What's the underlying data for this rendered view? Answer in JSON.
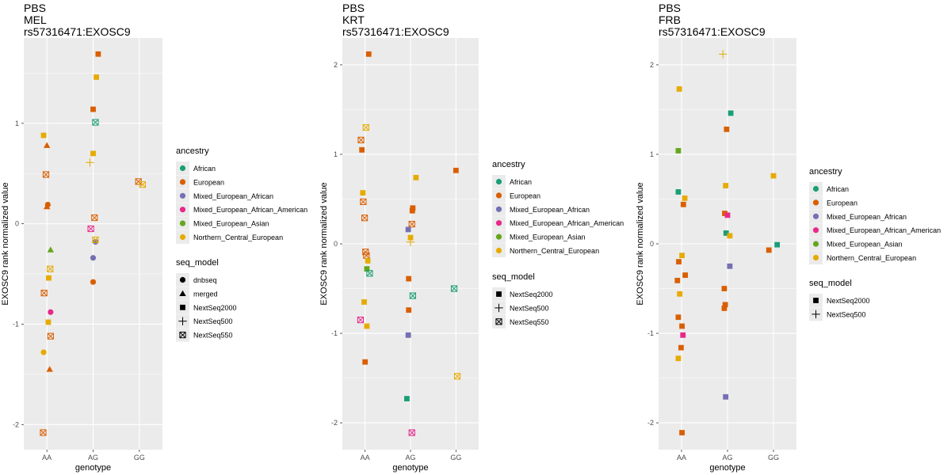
{
  "chart_data": [
    {
      "type": "scatter",
      "title": [
        "PBS",
        "MEL",
        "rs57316471:EXOSC9"
      ],
      "xlabel": "genotype",
      "ylabel": "EXOSC9 rank normalized value",
      "categories": [
        "AA",
        "AG",
        "GG"
      ],
      "ylim": [
        -2.25,
        1.85
      ],
      "yticks": [
        -2,
        -1,
        0,
        1
      ],
      "grid": true,
      "legend_position": "right",
      "ancestry_levels": [
        "African",
        "European",
        "Mixed_European_African",
        "Mixed_European_African_American",
        "Mixed_European_Asian",
        "Northern_Central_European"
      ],
      "seq_levels": [
        "dnbseq",
        "merged",
        "NextSeq2000",
        "NextSeq500",
        "NextSeq550"
      ],
      "points": [
        {
          "g": "AA",
          "j": -0.07,
          "y": 0.88,
          "a": "Northern_Central_European",
          "s": "NextSeq2000"
        },
        {
          "g": "AA",
          "j": 0.0,
          "y": 0.78,
          "a": "European",
          "s": "merged"
        },
        {
          "g": "AA",
          "j": -0.02,
          "y": 0.49,
          "a": "European",
          "s": "NextSeq550"
        },
        {
          "g": "AA",
          "j": 0.02,
          "y": 0.19,
          "a": "European",
          "s": "dnbseq"
        },
        {
          "g": "AA",
          "j": 0.0,
          "y": 0.17,
          "a": "European",
          "s": "merged"
        },
        {
          "g": "AA",
          "j": 0.08,
          "y": -0.26,
          "a": "Mixed_European_Asian",
          "s": "merged"
        },
        {
          "g": "AA",
          "j": 0.07,
          "y": -0.45,
          "a": "Northern_Central_European",
          "s": "NextSeq550"
        },
        {
          "g": "AA",
          "j": 0.04,
          "y": -0.54,
          "a": "Northern_Central_European",
          "s": "NextSeq2000"
        },
        {
          "g": "AA",
          "j": -0.06,
          "y": -0.69,
          "a": "European",
          "s": "NextSeq550"
        },
        {
          "g": "AA",
          "j": 0.08,
          "y": -0.88,
          "a": "Mixed_European_African_American",
          "s": "dnbseq"
        },
        {
          "g": "AA",
          "j": 0.03,
          "y": -0.98,
          "a": "Northern_Central_European",
          "s": "NextSeq2000"
        },
        {
          "g": "AA",
          "j": 0.08,
          "y": -1.12,
          "a": "European",
          "s": "NextSeq550"
        },
        {
          "g": "AA",
          "j": -0.07,
          "y": -1.28,
          "a": "Northern_Central_European",
          "s": "dnbseq"
        },
        {
          "g": "AA",
          "j": 0.06,
          "y": -1.45,
          "a": "European",
          "s": "merged"
        },
        {
          "g": "AA",
          "j": -0.08,
          "y": -2.08,
          "a": "European",
          "s": "NextSeq550"
        },
        {
          "g": "AG",
          "j": 0.11,
          "y": 1.69,
          "a": "European",
          "s": "NextSeq2000"
        },
        {
          "g": "AG",
          "j": 0.07,
          "y": 1.46,
          "a": "Northern_Central_European",
          "s": "NextSeq2000"
        },
        {
          "g": "AG",
          "j": 0.0,
          "y": 1.14,
          "a": "European",
          "s": "NextSeq2000"
        },
        {
          "g": "AG",
          "j": 0.05,
          "y": 1.01,
          "a": "African",
          "s": "NextSeq550"
        },
        {
          "g": "AG",
          "j": 0.0,
          "y": 0.7,
          "a": "Northern_Central_European",
          "s": "NextSeq2000"
        },
        {
          "g": "AG",
          "j": -0.07,
          "y": 0.61,
          "a": "Northern_Central_European",
          "s": "NextSeq500"
        },
        {
          "g": "AG",
          "j": 0.03,
          "y": 0.06,
          "a": "European",
          "s": "NextSeq550"
        },
        {
          "g": "AG",
          "j": -0.05,
          "y": -0.05,
          "a": "Mixed_European_African_American",
          "s": "NextSeq550"
        },
        {
          "g": "AG",
          "j": 0.05,
          "y": -0.18,
          "a": "Mixed_European_African",
          "s": "dnbseq"
        },
        {
          "g": "AG",
          "j": 0.05,
          "y": -0.16,
          "a": "Northern_Central_European",
          "s": "NextSeq550"
        },
        {
          "g": "AG",
          "j": 0.0,
          "y": -0.34,
          "a": "Mixed_European_African",
          "s": "dnbseq"
        },
        {
          "g": "AG",
          "j": 0.0,
          "y": -0.58,
          "a": "European",
          "s": "dnbseq"
        },
        {
          "g": "GG",
          "j": -0.02,
          "y": 0.42,
          "a": "European",
          "s": "NextSeq550"
        },
        {
          "g": "GG",
          "j": 0.07,
          "y": 0.39,
          "a": "Northern_Central_European",
          "s": "NextSeq550"
        }
      ]
    },
    {
      "type": "scatter",
      "title": [
        "PBS",
        "KRT",
        "rs57316471:EXOSC9"
      ],
      "xlabel": "genotype",
      "ylabel": "EXOSC9 rank normalized value",
      "categories": [
        "AA",
        "AG",
        "GG"
      ],
      "ylim": [
        -2.3,
        2.3
      ],
      "yticks": [
        -2,
        -1,
        0,
        1,
        2
      ],
      "grid": true,
      "legend_position": "right",
      "ancestry_levels": [
        "African",
        "European",
        "Mixed_European_African",
        "Mixed_European_African_American",
        "Mixed_European_Asian",
        "Northern_Central_European"
      ],
      "seq_levels": [
        "NextSeq2000",
        "NextSeq500",
        "NextSeq550"
      ],
      "points": [
        {
          "g": "AA",
          "j": 0.08,
          "y": 2.12,
          "a": "European",
          "s": "NextSeq2000"
        },
        {
          "g": "AA",
          "j": 0.02,
          "y": 1.3,
          "a": "Northern_Central_European",
          "s": "NextSeq550"
        },
        {
          "g": "AA",
          "j": -0.09,
          "y": 1.16,
          "a": "European",
          "s": "NextSeq550"
        },
        {
          "g": "AA",
          "j": -0.07,
          "y": 1.05,
          "a": "European",
          "s": "NextSeq2000"
        },
        {
          "g": "AA",
          "j": -0.05,
          "y": 0.57,
          "a": "Northern_Central_European",
          "s": "NextSeq2000"
        },
        {
          "g": "AA",
          "j": -0.04,
          "y": 0.47,
          "a": "European",
          "s": "NextSeq550"
        },
        {
          "g": "AA",
          "j": -0.01,
          "y": 0.29,
          "a": "European",
          "s": "NextSeq550"
        },
        {
          "g": "AA",
          "j": 0.01,
          "y": -0.09,
          "a": "European",
          "s": "NextSeq550"
        },
        {
          "g": "AA",
          "j": 0.03,
          "y": -0.13,
          "a": "European",
          "s": "NextSeq550"
        },
        {
          "g": "AA",
          "j": 0.06,
          "y": -0.19,
          "a": "Northern_Central_European",
          "s": "NextSeq2000"
        },
        {
          "g": "AA",
          "j": 0.04,
          "y": -0.28,
          "a": "Mixed_European_Asian",
          "s": "NextSeq2000"
        },
        {
          "g": "AA",
          "j": 0.1,
          "y": -0.33,
          "a": "African",
          "s": "NextSeq550"
        },
        {
          "g": "AA",
          "j": -0.02,
          "y": -0.65,
          "a": "Northern_Central_European",
          "s": "NextSeq2000"
        },
        {
          "g": "AA",
          "j": -0.1,
          "y": -0.85,
          "a": "Mixed_European_African_American",
          "s": "NextSeq550"
        },
        {
          "g": "AA",
          "j": 0.04,
          "y": -0.92,
          "a": "Northern_Central_European",
          "s": "NextSeq2000"
        },
        {
          "g": "AA",
          "j": 0.0,
          "y": -1.32,
          "a": "European",
          "s": "NextSeq2000"
        },
        {
          "g": "AG",
          "j": 0.12,
          "y": 0.74,
          "a": "Northern_Central_European",
          "s": "NextSeq2000"
        },
        {
          "g": "AG",
          "j": 0.05,
          "y": 0.4,
          "a": "European",
          "s": "NextSeq2000"
        },
        {
          "g": "AG",
          "j": 0.04,
          "y": 0.37,
          "a": "European",
          "s": "NextSeq2000"
        },
        {
          "g": "AG",
          "j": 0.03,
          "y": 0.22,
          "a": "European",
          "s": "NextSeq550"
        },
        {
          "g": "AG",
          "j": -0.05,
          "y": 0.16,
          "a": "Mixed_European_African",
          "s": "NextSeq2000"
        },
        {
          "g": "AG",
          "j": 0.0,
          "y": 0.07,
          "a": "Northern_Central_European",
          "s": "NextSeq2000"
        },
        {
          "g": "AG",
          "j": 0.0,
          "y": 0.02,
          "a": "Northern_Central_European",
          "s": "NextSeq500"
        },
        {
          "g": "AG",
          "j": -0.04,
          "y": -0.39,
          "a": "European",
          "s": "NextSeq2000"
        },
        {
          "g": "AG",
          "j": 0.05,
          "y": -0.58,
          "a": "African",
          "s": "NextSeq550"
        },
        {
          "g": "AG",
          "j": -0.04,
          "y": -0.74,
          "a": "European",
          "s": "NextSeq2000"
        },
        {
          "g": "AG",
          "j": -0.05,
          "y": -1.02,
          "a": "Mixed_European_African",
          "s": "NextSeq2000"
        },
        {
          "g": "AG",
          "j": -0.08,
          "y": -1.73,
          "a": "African",
          "s": "NextSeq2000"
        },
        {
          "g": "AG",
          "j": 0.03,
          "y": -2.11,
          "a": "Mixed_European_African_American",
          "s": "NextSeq550"
        },
        {
          "g": "GG",
          "j": 0.0,
          "y": 0.82,
          "a": "European",
          "s": "NextSeq2000"
        },
        {
          "g": "GG",
          "j": -0.04,
          "y": -0.5,
          "a": "African",
          "s": "NextSeq550"
        },
        {
          "g": "GG",
          "j": 0.03,
          "y": -1.48,
          "a": "Northern_Central_European",
          "s": "NextSeq550"
        }
      ]
    },
    {
      "type": "scatter",
      "title": [
        "PBS",
        "FRB",
        "rs57316471:EXOSC9"
      ],
      "xlabel": "genotype",
      "ylabel": "EXOSC9 rank normalized value",
      "categories": [
        "AA",
        "AG",
        "GG"
      ],
      "ylim": [
        -2.3,
        2.3
      ],
      "yticks": [
        -2,
        -1,
        0,
        1,
        2
      ],
      "grid": true,
      "legend_position": "right",
      "ancestry_levels": [
        "African",
        "European",
        "Mixed_European_African",
        "Mixed_European_African_American",
        "Mixed_European_Asian",
        "Northern_Central_European"
      ],
      "seq_levels": [
        "NextSeq2000",
        "NextSeq500"
      ],
      "points": [
        {
          "g": "AA",
          "j": -0.05,
          "y": 1.73,
          "a": "Northern_Central_European",
          "s": "NextSeq2000"
        },
        {
          "g": "AA",
          "j": -0.07,
          "y": 1.04,
          "a": "Mixed_European_Asian",
          "s": "NextSeq2000"
        },
        {
          "g": "AA",
          "j": -0.07,
          "y": 0.58,
          "a": "African",
          "s": "NextSeq2000"
        },
        {
          "g": "AA",
          "j": 0.07,
          "y": 0.51,
          "a": "Northern_Central_European",
          "s": "NextSeq2000"
        },
        {
          "g": "AA",
          "j": 0.04,
          "y": 0.44,
          "a": "European",
          "s": "NextSeq2000"
        },
        {
          "g": "AA",
          "j": 0.01,
          "y": -0.13,
          "a": "Northern_Central_European",
          "s": "NextSeq2000"
        },
        {
          "g": "AA",
          "j": -0.06,
          "y": -0.2,
          "a": "European",
          "s": "NextSeq2000"
        },
        {
          "g": "AA",
          "j": 0.08,
          "y": -0.35,
          "a": "European",
          "s": "NextSeq2000"
        },
        {
          "g": "AA",
          "j": -0.09,
          "y": -0.41,
          "a": "European",
          "s": "NextSeq2000"
        },
        {
          "g": "AA",
          "j": -0.04,
          "y": -0.56,
          "a": "Northern_Central_European",
          "s": "NextSeq2000"
        },
        {
          "g": "AA",
          "j": -0.07,
          "y": -0.82,
          "a": "European",
          "s": "NextSeq2000"
        },
        {
          "g": "AA",
          "j": 0.01,
          "y": -0.92,
          "a": "European",
          "s": "NextSeq2000"
        },
        {
          "g": "AA",
          "j": 0.03,
          "y": -1.02,
          "a": "Mixed_European_African_American",
          "s": "NextSeq2000"
        },
        {
          "g": "AA",
          "j": -0.01,
          "y": -1.16,
          "a": "European",
          "s": "NextSeq2000"
        },
        {
          "g": "AA",
          "j": -0.07,
          "y": -1.28,
          "a": "Northern_Central_European",
          "s": "NextSeq2000"
        },
        {
          "g": "AA",
          "j": 0.01,
          "y": -2.11,
          "a": "European",
          "s": "NextSeq2000"
        },
        {
          "g": "AG",
          "j": -0.1,
          "y": 2.12,
          "a": "Northern_Central_European",
          "s": "NextSeq500"
        },
        {
          "g": "AG",
          "j": 0.07,
          "y": 1.46,
          "a": "African",
          "s": "NextSeq2000"
        },
        {
          "g": "AG",
          "j": -0.02,
          "y": 1.28,
          "a": "European",
          "s": "NextSeq2000"
        },
        {
          "g": "AG",
          "j": -0.04,
          "y": 0.65,
          "a": "Northern_Central_European",
          "s": "NextSeq2000"
        },
        {
          "g": "AG",
          "j": -0.06,
          "y": 0.34,
          "a": "European",
          "s": "NextSeq2000"
        },
        {
          "g": "AG",
          "j": 0.0,
          "y": 0.32,
          "a": "Mixed_European_African_American",
          "s": "NextSeq2000"
        },
        {
          "g": "AG",
          "j": -0.03,
          "y": 0.12,
          "a": "African",
          "s": "NextSeq2000"
        },
        {
          "g": "AG",
          "j": 0.05,
          "y": 0.09,
          "a": "Northern_Central_European",
          "s": "NextSeq2000"
        },
        {
          "g": "AG",
          "j": 0.05,
          "y": -0.25,
          "a": "Mixed_European_African",
          "s": "NextSeq2000"
        },
        {
          "g": "AG",
          "j": -0.07,
          "y": -0.5,
          "a": "European",
          "s": "NextSeq2000"
        },
        {
          "g": "AG",
          "j": -0.05,
          "y": -0.68,
          "a": "European",
          "s": "NextSeq2000"
        },
        {
          "g": "AG",
          "j": -0.07,
          "y": -0.72,
          "a": "European",
          "s": "NextSeq2000"
        },
        {
          "g": "AG",
          "j": -0.04,
          "y": -1.71,
          "a": "Mixed_European_African",
          "s": "NextSeq2000"
        },
        {
          "g": "GG",
          "j": 0.0,
          "y": 0.76,
          "a": "Northern_Central_European",
          "s": "NextSeq2000"
        },
        {
          "g": "GG",
          "j": -0.1,
          "y": -0.07,
          "a": "European",
          "s": "NextSeq2000"
        },
        {
          "g": "GG",
          "j": 0.08,
          "y": -0.01,
          "a": "African",
          "s": "NextSeq2000"
        }
      ]
    }
  ],
  "legend": {
    "ancestry_title": "ancestry",
    "seq_title": "seq_model",
    "colors": {
      "African": "#1b9e77",
      "European": "#d95f02",
      "Mixed_European_African": "#7570b3",
      "Mixed_European_African_American": "#e7298a",
      "Mixed_European_Asian": "#66a61e",
      "Northern_Central_European": "#e6ab02"
    },
    "shapes": {
      "dnbseq": "circle",
      "merged": "triangle",
      "NextSeq2000": "square",
      "NextSeq500": "plus",
      "NextSeq550": "boxed-x"
    }
  },
  "panel_background": "#ebebeb",
  "grid_color": "#ffffff"
}
